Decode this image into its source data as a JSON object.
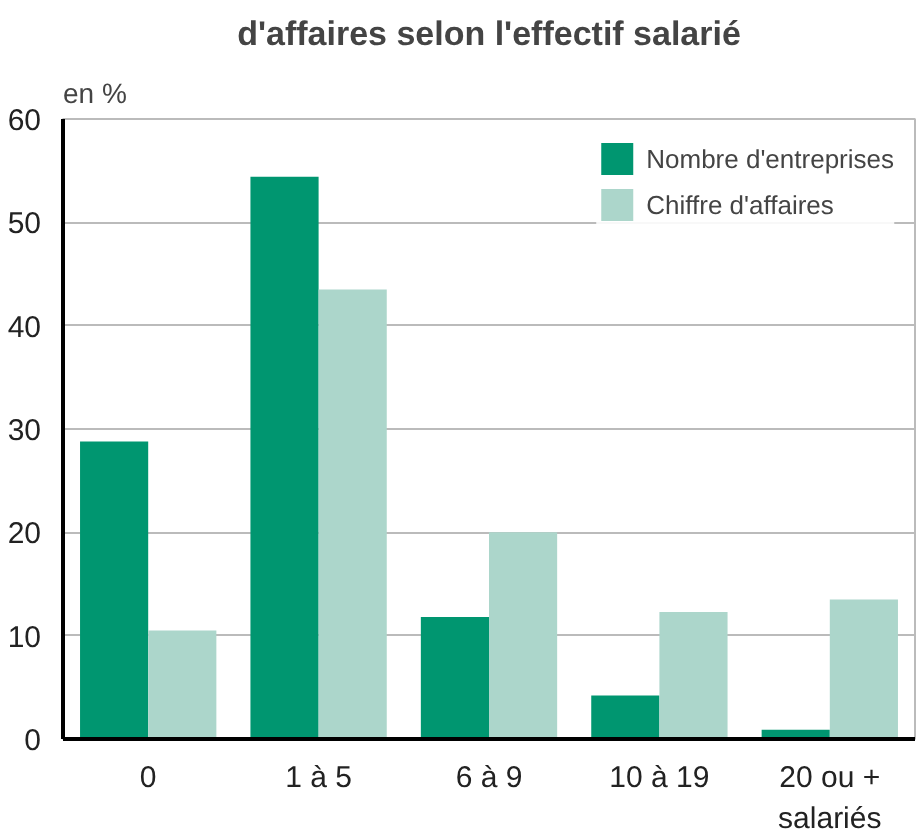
{
  "chart_data": {
    "type": "bar",
    "title": "d'affaires selon l'effectif salarié",
    "ylabel": "en %",
    "categories": [
      "0",
      "1 à 5",
      "6 à 9",
      "10 à 19",
      "20 ou +\nsalariés"
    ],
    "series": [
      {
        "name": "Nombre d'entreprises",
        "color": "#009670",
        "values": [
          28.8,
          54.4,
          11.8,
          4.2,
          0.9
        ]
      },
      {
        "name": "Chiffre d'affaires",
        "color": "#acd6cb",
        "values": [
          10.5,
          43.5,
          20,
          12.3,
          13.5
        ]
      }
    ],
    "ylim": [
      0,
      60
    ],
    "yticks": [
      0,
      10,
      20,
      30,
      40,
      50,
      60
    ],
    "grid": "y",
    "legend": "top right"
  }
}
